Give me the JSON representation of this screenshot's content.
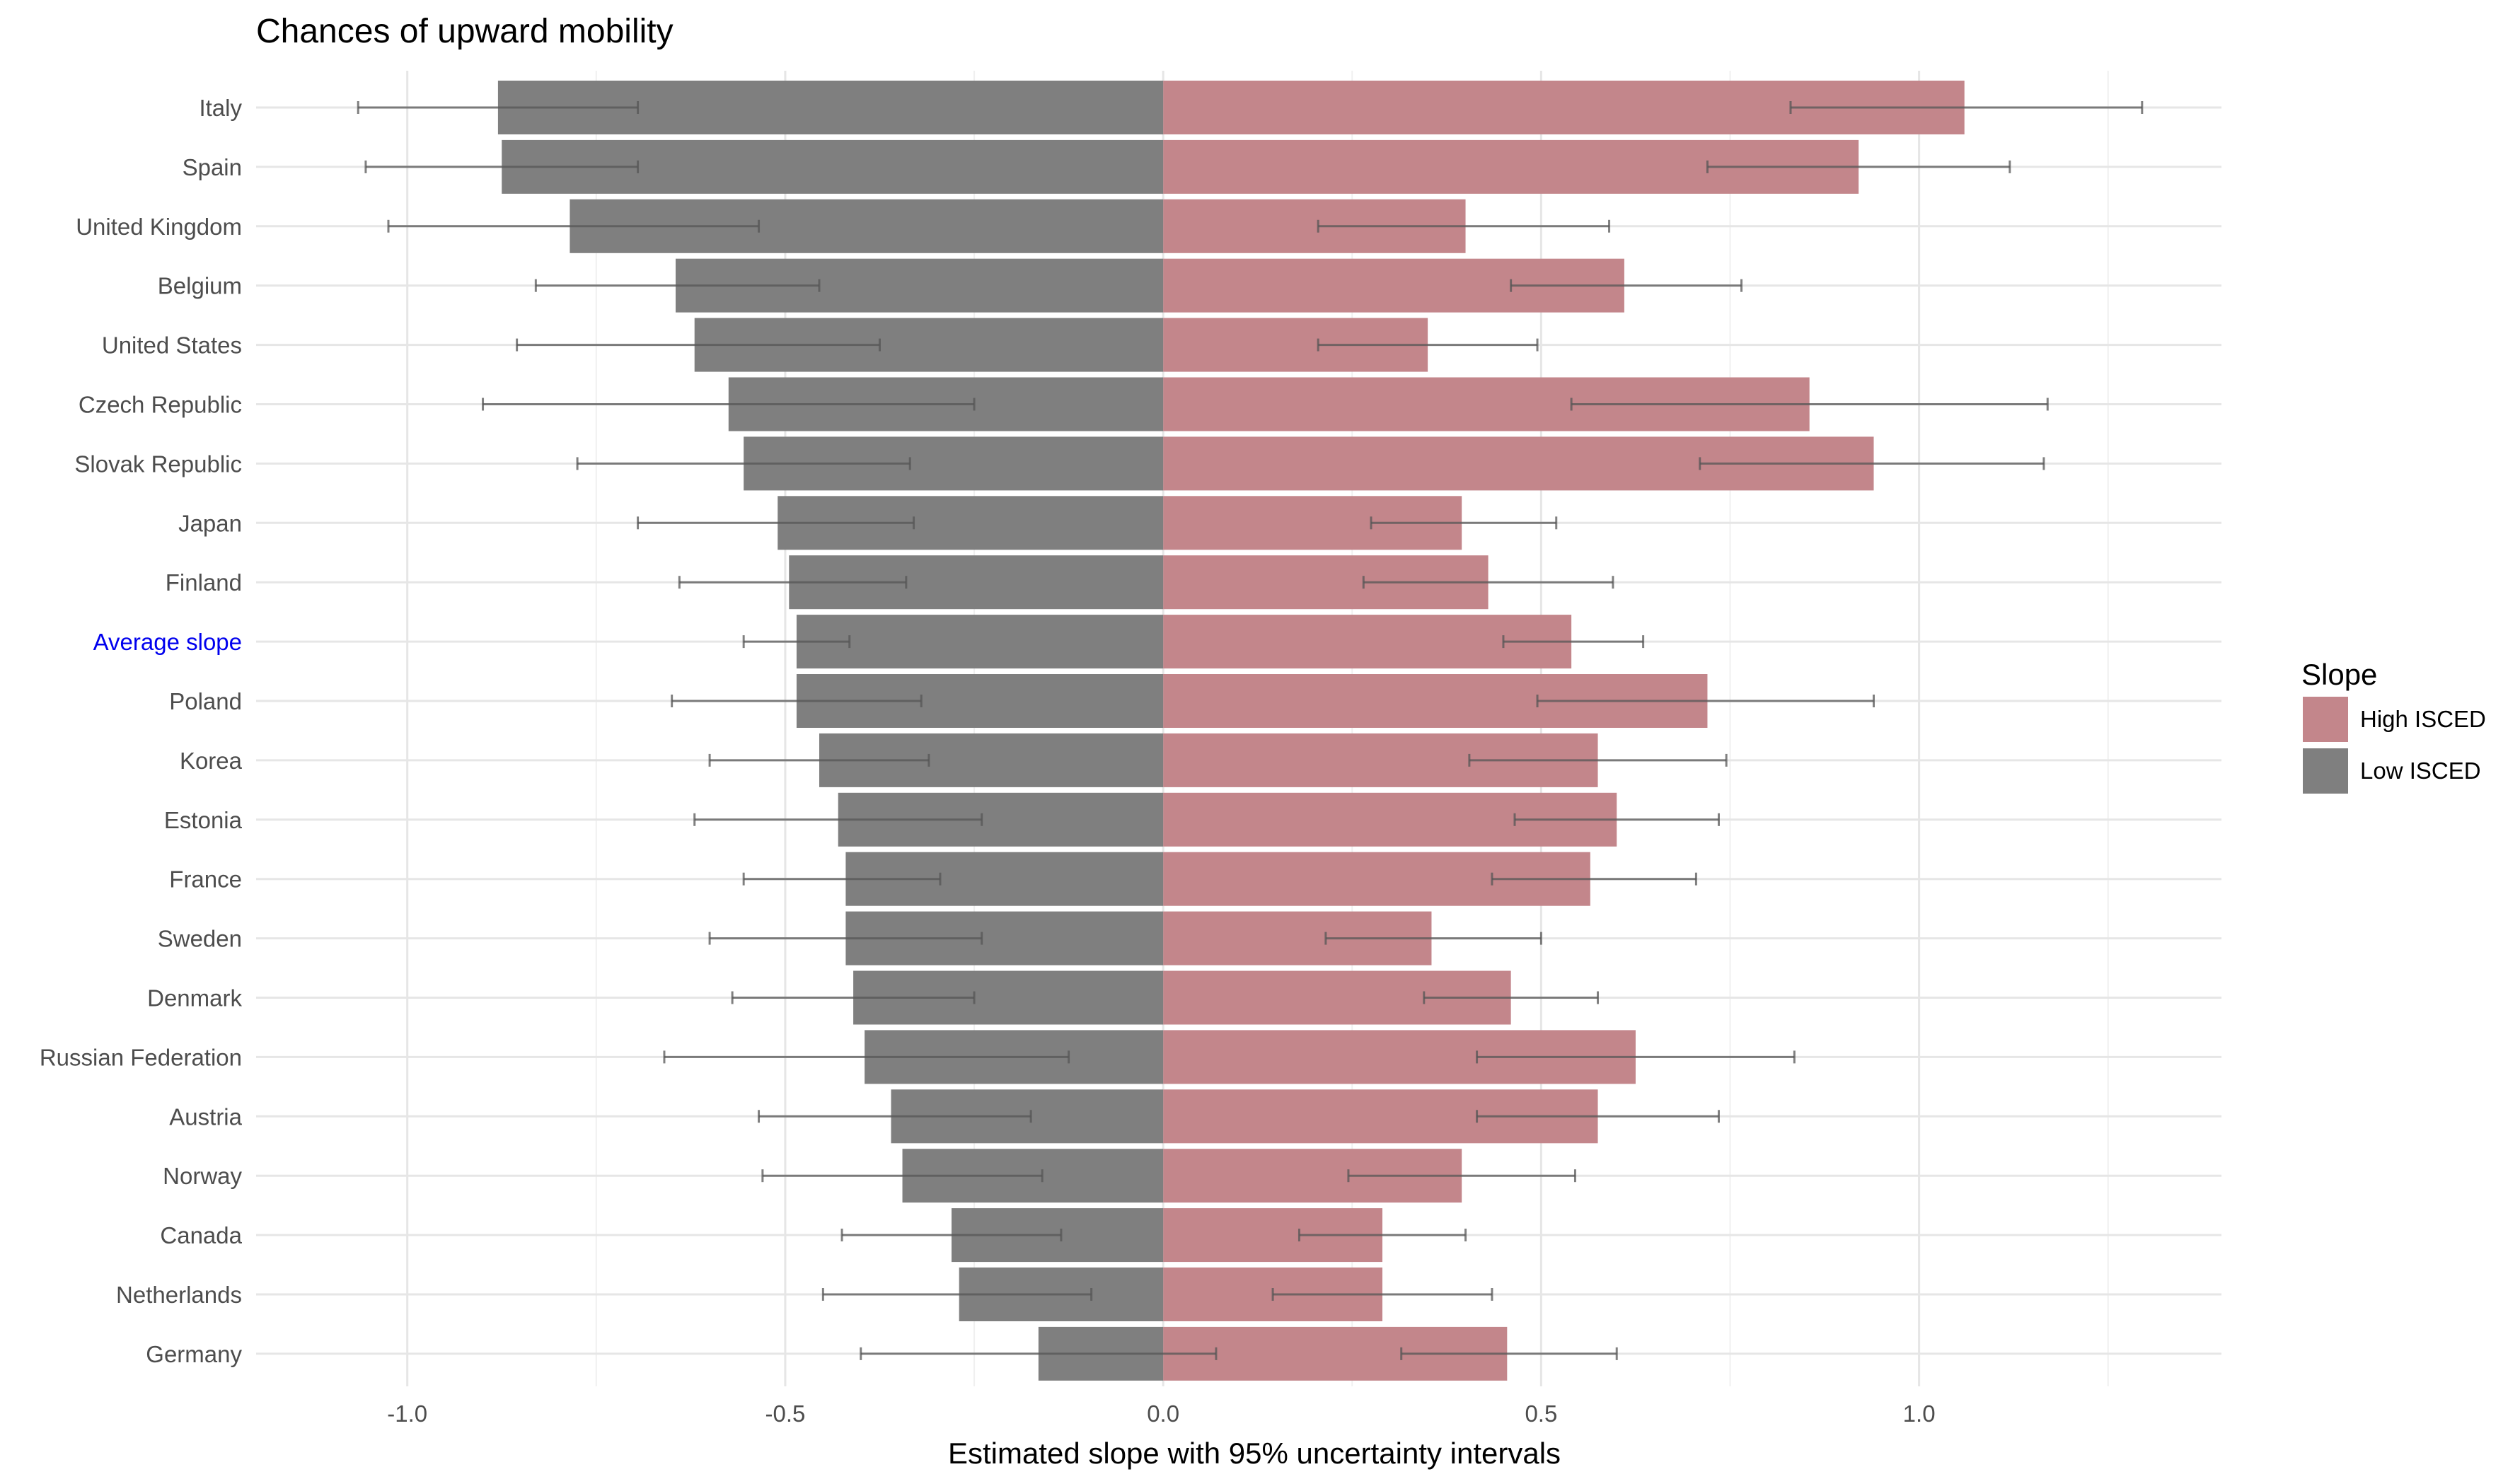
{
  "chart_data": {
    "type": "bar",
    "title": "Chances of upward mobility",
    "xlabel": "Estimated slope with 95% uncertainty intervals",
    "ylabel": "",
    "xlim": [
      -1.2,
      1.4
    ],
    "x_ticks": [
      "-1.0",
      "-0.5",
      "0.0",
      "0.5",
      "1.0"
    ],
    "x_tick_values": [
      -1.0,
      -0.5,
      0.0,
      0.5,
      1.0
    ],
    "orientation": "horizontal",
    "grid": true,
    "legend": {
      "title": "Slope",
      "position": "right"
    },
    "highlight_category": "Average slope",
    "highlight_color": "#0000ee",
    "categories": [
      "Italy",
      "Spain",
      "United Kingdom",
      "Belgium",
      "United States",
      "Czech Republic",
      "Slovak Republic",
      "Japan",
      "Finland",
      "Average slope",
      "Poland",
      "Korea",
      "Estonia",
      "France",
      "Sweden",
      "Denmark",
      "Russian Federation",
      "Austria",
      "Norway",
      "Canada",
      "Netherlands",
      "Germany"
    ],
    "series": [
      {
        "name": "High ISCED",
        "color": "#c3868b",
        "values": [
          1.06,
          0.92,
          0.4,
          0.61,
          0.35,
          0.855,
          0.94,
          0.395,
          0.43,
          0.54,
          0.72,
          0.575,
          0.6,
          0.565,
          0.355,
          0.46,
          0.625,
          0.575,
          0.395,
          0.29,
          0.29,
          0.455
        ],
        "ci_low": [
          0.83,
          0.72,
          0.205,
          0.46,
          0.205,
          0.54,
          0.71,
          0.275,
          0.265,
          0.45,
          0.495,
          0.405,
          0.465,
          0.435,
          0.215,
          0.345,
          0.415,
          0.415,
          0.245,
          0.18,
          0.145,
          0.315
        ],
        "ci_high": [
          1.295,
          1.12,
          0.59,
          0.765,
          0.495,
          1.17,
          1.165,
          0.52,
          0.595,
          0.635,
          0.94,
          0.745,
          0.735,
          0.705,
          0.5,
          0.575,
          0.835,
          0.735,
          0.545,
          0.4,
          0.435,
          0.6
        ]
      },
      {
        "name": "Low ISCED",
        "color": "#7f7f7f",
        "values": [
          -0.88,
          -0.875,
          -0.785,
          -0.645,
          -0.62,
          -0.575,
          -0.555,
          -0.51,
          -0.495,
          -0.485,
          -0.485,
          -0.455,
          -0.43,
          -0.42,
          -0.42,
          -0.41,
          -0.395,
          -0.36,
          -0.345,
          -0.28,
          -0.27,
          -0.165
        ],
        "ci_low": [
          -1.065,
          -1.055,
          -1.025,
          -0.83,
          -0.855,
          -0.9,
          -0.775,
          -0.695,
          -0.64,
          -0.555,
          -0.65,
          -0.6,
          -0.62,
          -0.555,
          -0.6,
          -0.57,
          -0.66,
          -0.535,
          -0.53,
          -0.425,
          -0.45,
          -0.4
        ],
        "ci_high": [
          -0.695,
          -0.695,
          -0.535,
          -0.455,
          -0.375,
          -0.25,
          -0.335,
          -0.33,
          -0.34,
          -0.415,
          -0.32,
          -0.31,
          -0.24,
          -0.295,
          -0.24,
          -0.25,
          -0.125,
          -0.175,
          -0.16,
          -0.135,
          -0.095,
          0.07
        ]
      }
    ]
  }
}
